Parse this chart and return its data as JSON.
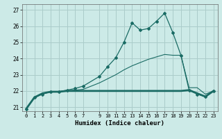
{
  "xlabel": "Humidex (Indice chaleur)",
  "background_color": "#cceae7",
  "grid_color": "#aaccca",
  "line_color": "#1a6b64",
  "xlim": [
    -0.5,
    23.5
  ],
  "ylim": [
    20.75,
    27.35
  ],
  "yticks": [
    21,
    22,
    23,
    24,
    25,
    26,
    27
  ],
  "xticks": [
    0,
    1,
    2,
    3,
    4,
    5,
    6,
    7,
    9,
    10,
    11,
    12,
    13,
    14,
    15,
    16,
    17,
    18,
    19,
    20,
    21,
    22,
    23
  ],
  "xtick_labels": [
    "0",
    "1",
    "2",
    "3",
    "4",
    "5",
    "6",
    "7",
    "9",
    "10",
    "11",
    "12",
    "13",
    "14",
    "15",
    "16",
    "17",
    "18",
    "19",
    "20",
    "21",
    "22",
    "23"
  ],
  "curve_x": [
    0,
    1,
    2,
    3,
    4,
    5,
    6,
    7,
    9,
    10,
    11,
    12,
    13,
    14,
    15,
    16,
    17,
    18,
    19,
    20,
    21,
    22,
    23
  ],
  "curve_y": [
    20.9,
    21.6,
    21.8,
    21.95,
    21.95,
    22.05,
    22.15,
    22.3,
    22.9,
    23.5,
    24.05,
    25.0,
    26.2,
    25.75,
    25.85,
    26.3,
    26.8,
    25.6,
    24.2,
    22.05,
    21.8,
    21.65,
    22.0
  ],
  "flat_x": [
    0,
    1,
    2,
    3,
    4,
    5,
    6,
    7,
    9,
    10,
    11,
    12,
    13,
    14,
    15,
    16,
    17,
    18,
    19,
    20,
    21,
    22,
    23
  ],
  "flat_y": [
    20.9,
    21.6,
    21.85,
    21.95,
    21.95,
    22.0,
    22.0,
    22.0,
    22.0,
    22.0,
    22.0,
    22.0,
    22.0,
    22.0,
    22.0,
    22.0,
    22.0,
    22.0,
    22.0,
    22.05,
    21.85,
    21.65,
    22.0
  ],
  "diag_x": [
    0,
    1,
    2,
    3,
    4,
    5,
    6,
    7,
    9,
    10,
    11,
    12,
    13,
    14,
    15,
    16,
    17,
    18,
    19,
    20,
    21,
    22,
    23
  ],
  "diag_y": [
    20.9,
    21.6,
    21.85,
    21.95,
    21.95,
    22.0,
    22.05,
    22.1,
    22.5,
    22.75,
    23.0,
    23.3,
    23.55,
    23.75,
    23.95,
    24.1,
    24.25,
    24.2,
    24.2,
    22.2,
    22.2,
    21.8,
    22.0
  ]
}
